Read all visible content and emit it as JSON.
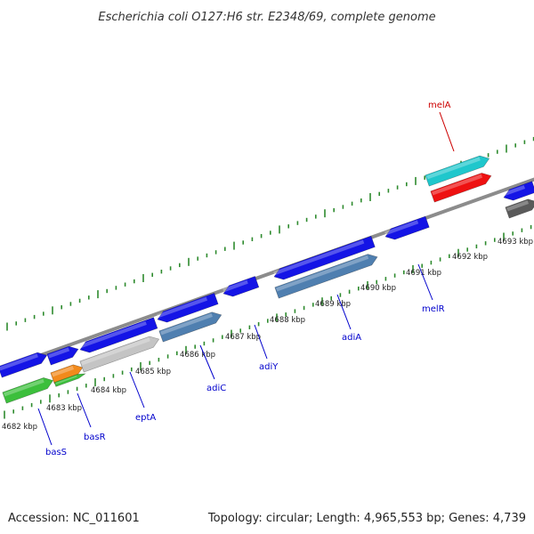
{
  "title": "Escherichia coli O127:H6 str. E2348/69, complete genome",
  "footer": {
    "accession": "Accession: NC_011601",
    "summary": "Topology: circular; Length: 4,965,553 bp; Genes: 4,739"
  },
  "colors": {
    "background": "#ffffff",
    "backbone": "#8c8c8c",
    "tick": "#2e8b2e",
    "gene_blue": "#1414e6",
    "label_blue": "#0000cc",
    "label_red": "#cc0000",
    "steel_blue": "#4f7fb0",
    "light_gray": "#c4c4c4",
    "dark_gray": "#5a5a5a",
    "orange": "#f28a1c",
    "green": "#3cbf3c",
    "cyan": "#1fc7cc",
    "red": "#ee1111"
  },
  "scale": {
    "unit": "kbp",
    "labels": [
      "4682 kbp",
      "4683 kbp",
      "4684 kbp",
      "4685 kbp",
      "4686 kbp",
      "4687 kbp",
      "4688 kbp",
      "4689 kbp",
      "4690 kbp",
      "4691 kbp",
      "4692 kbp",
      "4693 kbp"
    ]
  },
  "gene_labels": [
    {
      "name": "basS",
      "color": "#0000cc"
    },
    {
      "name": "basR",
      "color": "#0000cc"
    },
    {
      "name": "eptA",
      "color": "#0000cc"
    },
    {
      "name": "adiC",
      "color": "#0000cc"
    },
    {
      "name": "adiY",
      "color": "#0000cc"
    },
    {
      "name": "adiA",
      "color": "#0000cc"
    },
    {
      "name": "melR",
      "color": "#0000cc"
    },
    {
      "name": "melA",
      "color": "#cc0000"
    }
  ]
}
